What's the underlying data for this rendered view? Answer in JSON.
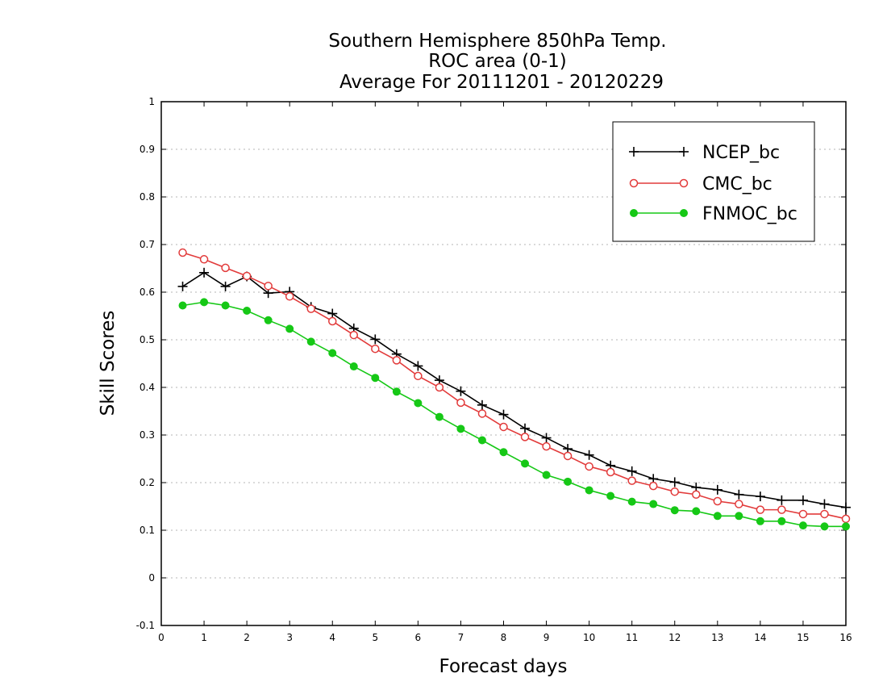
{
  "colors": {
    "NCEP_bc": "#000000",
    "CMC_bc": "#e23b3b",
    "FNMOC_bc": "#16c816",
    "grid": "#b4b4b4",
    "axis": "#000000"
  },
  "chart_data": {
    "type": "line",
    "title_lines": [
      "Southern Hemisphere 850hPa Temp.",
      "ROC area (0-1)",
      "Average For 20111201 - 20120229"
    ],
    "xlabel": "Forecast days",
    "ylabel": "Skill Scores",
    "xlim": [
      0,
      16
    ],
    "ylim": [
      -0.1,
      1
    ],
    "xticks": [
      0,
      1,
      2,
      3,
      4,
      5,
      6,
      7,
      8,
      9,
      10,
      11,
      12,
      13,
      14,
      15,
      16
    ],
    "xtick_labels": [
      "0",
      "1",
      "2",
      "3",
      "4",
      "5",
      "6",
      "7",
      "8",
      "9",
      "10",
      "11",
      "12",
      "13",
      "14",
      "15",
      "16"
    ],
    "yticks": [
      -0.1,
      0,
      0.1,
      0.2,
      0.3,
      0.4,
      0.5,
      0.6,
      0.7,
      0.8,
      0.9,
      1
    ],
    "ytick_labels": [
      "-0.1",
      "0",
      "0.1",
      "0.2",
      "0.3",
      "0.4",
      "0.5",
      "0.6",
      "0.7",
      "0.8",
      "0.9",
      "1"
    ],
    "grid": "horizontal dotted",
    "legend_position": "top-right",
    "x": [
      0.5,
      1,
      1.5,
      2,
      2.5,
      3,
      3.5,
      4,
      4.5,
      5,
      5.5,
      6,
      6.5,
      7,
      7.5,
      8,
      8.5,
      9,
      9.5,
      10,
      10.5,
      11,
      11.5,
      12,
      12.5,
      13,
      13.5,
      14,
      14.5,
      15,
      15.5,
      16
    ],
    "series": [
      {
        "name": "NCEP_bc",
        "marker": "plus",
        "values": [
          0.612,
          0.641,
          0.612,
          0.633,
          0.598,
          0.601,
          0.569,
          0.555,
          0.524,
          0.501,
          0.47,
          0.445,
          0.415,
          0.392,
          0.363,
          0.343,
          0.314,
          0.294,
          0.271,
          0.258,
          0.236,
          0.224,
          0.208,
          0.201,
          0.19,
          0.185,
          0.175,
          0.171,
          0.163,
          0.163,
          0.155,
          0.148
        ]
      },
      {
        "name": "CMC_bc",
        "marker": "open-circle",
        "values": [
          0.683,
          0.669,
          0.651,
          0.634,
          0.613,
          0.591,
          0.565,
          0.539,
          0.51,
          0.481,
          0.457,
          0.424,
          0.4,
          0.368,
          0.345,
          0.317,
          0.296,
          0.276,
          0.256,
          0.234,
          0.222,
          0.204,
          0.193,
          0.181,
          0.175,
          0.161,
          0.155,
          0.143,
          0.143,
          0.134,
          0.134,
          0.124
        ]
      },
      {
        "name": "FNMOC_bc",
        "marker": "filled-circle",
        "values": [
          0.572,
          0.579,
          0.572,
          0.561,
          0.541,
          0.523,
          0.496,
          0.472,
          0.444,
          0.42,
          0.391,
          0.367,
          0.338,
          0.313,
          0.289,
          0.264,
          0.24,
          0.216,
          0.202,
          0.184,
          0.172,
          0.16,
          0.155,
          0.142,
          0.14,
          0.13,
          0.13,
          0.119,
          0.119,
          0.11,
          0.108,
          0.108
        ]
      }
    ]
  }
}
